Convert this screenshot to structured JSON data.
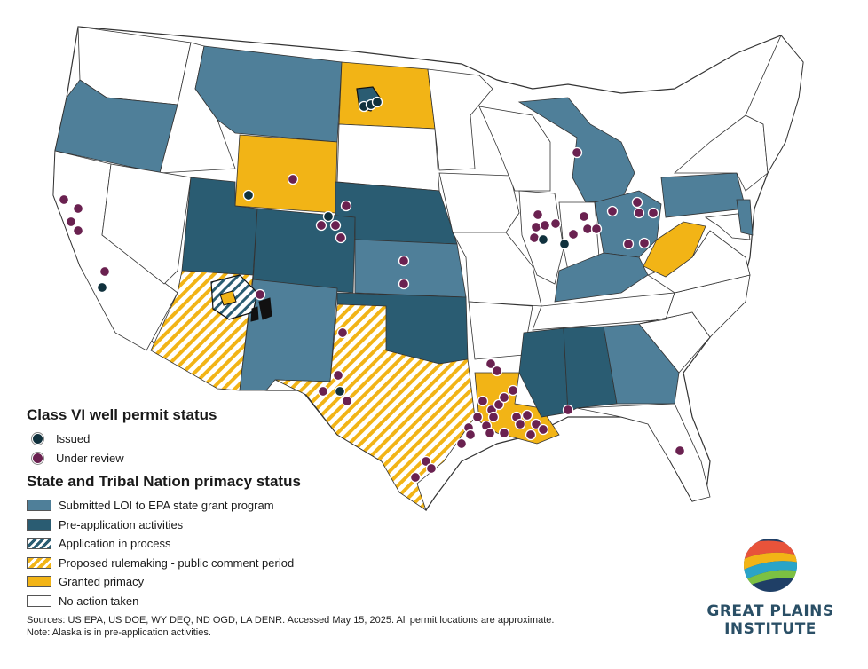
{
  "colors": {
    "submitted_loi": "#4f7f99",
    "pre_application": "#2a5c72",
    "application_in_process": "#2a5c72",
    "proposed_rulemaking": "#f2b416",
    "granted_primacy": "#f2b416",
    "no_action": "#ffffff",
    "issued": "#10313d",
    "under_review": "#6a2150"
  },
  "legend": {
    "permit_title": "Class VI well permit status",
    "permit_items": [
      {
        "label": "Issued",
        "color": "#10313d"
      },
      {
        "label": "Under review",
        "color": "#6a2150"
      }
    ],
    "primacy_title": "State and Tribal Nation primacy status",
    "primacy_items": [
      {
        "label": "Submitted LOI to EPA state grant program",
        "style": "solid",
        "color": "#4f7f99"
      },
      {
        "label": "Pre-application activities",
        "style": "solid",
        "color": "#2a5c72"
      },
      {
        "label": "Application in process",
        "style": "hatch",
        "color": "#2a5c72"
      },
      {
        "label": "Proposed rulemaking - public comment period",
        "style": "hatch",
        "color": "#f2b416"
      },
      {
        "label": "Granted primacy",
        "style": "solid",
        "color": "#f2b416"
      },
      {
        "label": "No action taken",
        "style": "solid",
        "color": "#ffffff"
      }
    ]
  },
  "sources": {
    "line1": "Sources: US EPA, US DOE, WY DEQ, ND OGD, LA DENR. Accessed May 15, 2025. All permit locations are approximate.",
    "line2": "Note: Alaska is in pre-application activities."
  },
  "logo": {
    "line1": "GREAT PLAINS",
    "line2": "INSTITUTE"
  }
}
